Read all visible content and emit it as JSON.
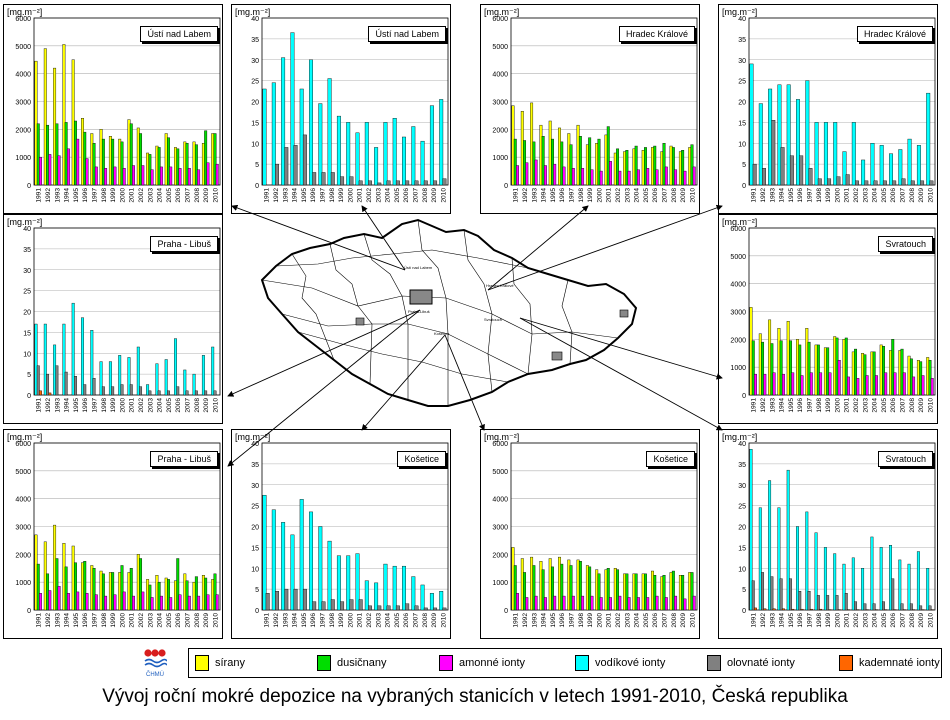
{
  "caption": "Vývoj roční mokré depozice na vybraných stanicích  v letech 1991-2010, Česká republika",
  "logo_text": "ČHMÚ",
  "map": {
    "labels": [
      "Ústí nad Labem",
      "Hradec Králové",
      "Praha-Libuš",
      "Svratouch",
      "Košetice"
    ]
  },
  "legend": [
    {
      "label": "sírany",
      "color": "#ffff00"
    },
    {
      "label": "dusičnany",
      "color": "#00dd00"
    },
    {
      "label": "amonné ionty",
      "color": "#ff00ff"
    },
    {
      "label": "vodíkové ionty",
      "color": "#00ffff"
    },
    {
      "label": "olovnaté ionty",
      "color": "#808080"
    },
    {
      "label": "kademnaté ionty",
      "color": "#ff6600"
    }
  ],
  "chart_data": [
    {
      "type": "bar",
      "unit": "[mg.m⁻²]",
      "title": "Ústí nad Labem",
      "ylim": [
        0,
        6000
      ],
      "ystep": 1000,
      "categories": [
        "1991",
        "1992",
        "1993",
        "1994",
        "1995",
        "1996",
        "1997",
        "1998",
        "1999",
        "2000",
        "2001",
        "2002",
        "2003",
        "2004",
        "2005",
        "2006",
        "2007",
        "2008",
        "2009",
        "2010"
      ],
      "series": [
        {
          "name": "sírany",
          "values": [
            4450,
            4900,
            4200,
            5050,
            4500,
            2400,
            1850,
            2000,
            1750,
            1650,
            2350,
            2050,
            1150,
            1400,
            1850,
            1350,
            1550,
            1550,
            1500,
            1850
          ]
        },
        {
          "name": "dusičnany",
          "values": [
            2200,
            2150,
            2200,
            2250,
            2300,
            1900,
            1500,
            1650,
            1650,
            1550,
            2200,
            1850,
            1100,
            1350,
            1700,
            1300,
            1500,
            1450,
            1950,
            1850
          ]
        },
        {
          "name": "amonné ionty",
          "values": [
            1000,
            1100,
            1050,
            1300,
            1650,
            950,
            650,
            600,
            650,
            600,
            700,
            700,
            550,
            650,
            650,
            600,
            600,
            550,
            800,
            750
          ]
        }
      ]
    },
    {
      "type": "bar",
      "unit": "[mg.m⁻²]",
      "title": "Ústí nad Labem",
      "ylim": [
        0,
        40
      ],
      "ystep": 5,
      "categories": [
        "1991",
        "1992",
        "1993",
        "1994",
        "1995",
        "1996",
        "1997",
        "1998",
        "1999",
        "2000",
        "2001",
        "2002",
        "2003",
        "2004",
        "2005",
        "2006",
        "2007",
        "2008",
        "2009",
        "2010"
      ],
      "series": [
        {
          "name": "vodíkové ionty",
          "values": [
            23,
            24.5,
            30.5,
            36.5,
            23,
            30,
            19.5,
            25.5,
            16.5,
            15,
            12.5,
            15,
            9,
            15,
            16,
            11.5,
            14,
            10.5,
            19,
            20.5
          ]
        },
        {
          "name": "olovnaté ionty",
          "values": [
            0,
            5,
            9,
            9.5,
            12,
            3,
            3,
            3,
            2,
            2,
            1,
            1,
            0.5,
            1,
            1,
            1,
            1,
            1,
            1,
            1.5
          ]
        }
      ]
    },
    {
      "type": "bar",
      "unit": "[mg.m⁻²]",
      "title": "Hradec Králové",
      "ylim": [
        0,
        6000
      ],
      "ystep": 1000,
      "categories": [
        "1991",
        "1992",
        "1993",
        "1994",
        "1995",
        "1996",
        "1997",
        "1998",
        "1999",
        "2000",
        "2001",
        "2002",
        "2003",
        "2004",
        "2005",
        "2006",
        "2007",
        "2008",
        "2009",
        "2010"
      ],
      "series": [
        {
          "name": "sírany",
          "values": [
            2850,
            2650,
            2950,
            2150,
            2300,
            2050,
            1850,
            2150,
            1450,
            1500,
            1800,
            1150,
            1200,
            1300,
            1250,
            1350,
            1200,
            1400,
            1200,
            1350
          ]
        },
        {
          "name": "dusičnany",
          "values": [
            1650,
            1600,
            1550,
            1750,
            1650,
            1550,
            1450,
            1750,
            1700,
            1650,
            2100,
            1300,
            1250,
            1400,
            1350,
            1400,
            1500,
            1350,
            1250,
            1450
          ]
        },
        {
          "name": "amonné ionty",
          "values": [
            700,
            800,
            900,
            700,
            750,
            650,
            600,
            600,
            550,
            500,
            850,
            500,
            500,
            550,
            600,
            550,
            650,
            550,
            500,
            650
          ]
        }
      ]
    },
    {
      "type": "bar",
      "unit": "[mg.m⁻²]",
      "title": "Hradec Králové",
      "ylim": [
        0,
        40
      ],
      "ystep": 5,
      "categories": [
        "1991",
        "1992",
        "1993",
        "1994",
        "1995",
        "1996",
        "1997",
        "1998",
        "1999",
        "2000",
        "2001",
        "2002",
        "2003",
        "2004",
        "2005",
        "2006",
        "2007",
        "2008",
        "2009",
        "2010"
      ],
      "series": [
        {
          "name": "vodíkové ionty",
          "values": [
            29,
            19.5,
            23,
            24,
            24,
            20.5,
            25,
            15,
            15,
            15,
            8,
            15,
            6,
            10,
            9.5,
            7.5,
            8.5,
            11,
            9.5,
            22
          ]
        },
        {
          "name": "olovnaté ionty",
          "values": [
            5,
            4,
            15.5,
            9,
            7,
            7,
            4,
            1.5,
            1.5,
            2,
            2.5,
            1,
            1,
            1,
            1,
            1,
            1.5,
            1,
            1,
            1
          ]
        }
      ]
    },
    {
      "type": "bar",
      "unit": "[mg.m⁻²]",
      "title": "Praha - Libuš",
      "ylim": [
        0,
        40
      ],
      "ystep": 5,
      "categories": [
        "1991",
        "1992",
        "1993",
        "1994",
        "1995",
        "1996",
        "1997",
        "1998",
        "1999",
        "2000",
        "2001",
        "2002",
        "2003",
        "2004",
        "2005",
        "2006",
        "2007",
        "2008",
        "2009",
        "2010"
      ],
      "series": [
        {
          "name": "vodíkové ionty",
          "values": [
            17,
            17,
            12,
            17,
            22,
            18.5,
            15.5,
            8,
            8,
            9.5,
            9,
            11.5,
            2.5,
            7.5,
            8.5,
            13.5,
            6,
            5,
            9.5,
            11.5
          ]
        },
        {
          "name": "olovnaté ionty",
          "values": [
            7,
            5,
            7,
            5.5,
            4.5,
            2.5,
            4,
            2,
            2,
            2.5,
            2.5,
            2,
            1,
            1,
            1,
            2,
            1,
            1,
            1,
            1
          ]
        },
        {
          "name": "kademnaté ionty",
          "values": [
            1,
            0.5,
            0,
            0,
            0,
            0,
            0,
            0,
            0,
            0,
            0,
            0,
            0,
            0,
            0,
            0,
            0,
            0,
            0,
            0
          ]
        }
      ]
    },
    {
      "type": "bar",
      "unit": "[mg.m⁻²]",
      "title": "Svratouch",
      "ylim": [
        0,
        6000
      ],
      "ystep": 1000,
      "categories": [
        "1991",
        "1992",
        "1993",
        "1994",
        "1995",
        "1996",
        "1997",
        "1998",
        "1999",
        "2000",
        "2001",
        "2002",
        "2003",
        "2004",
        "2005",
        "2006",
        "2007",
        "2008",
        "2009",
        "2010"
      ],
      "series": [
        {
          "name": "sírany",
          "values": [
            3150,
            2200,
            2700,
            2400,
            2650,
            2000,
            2400,
            1800,
            1700,
            2100,
            2000,
            1550,
            1500,
            1550,
            1800,
            1600,
            1600,
            1400,
            1250,
            1350
          ]
        },
        {
          "name": "dusičnany",
          "values": [
            1950,
            1900,
            1850,
            1950,
            1950,
            1800,
            1900,
            1800,
            1700,
            2050,
            2050,
            1650,
            1450,
            1550,
            1750,
            2000,
            1650,
            1300,
            1200,
            1250
          ]
        },
        {
          "name": "amonné ionty",
          "values": [
            750,
            750,
            800,
            750,
            800,
            700,
            800,
            800,
            800,
            1250,
            650,
            600,
            700,
            700,
            800,
            800,
            800,
            650,
            700,
            600
          ]
        }
      ]
    },
    {
      "type": "bar",
      "unit": "[mg.m⁻²]",
      "title": "Praha - Libuš",
      "ylim": [
        0,
        6000
      ],
      "ystep": 1000,
      "categories": [
        "1991",
        "1992",
        "1993",
        "1994",
        "1995",
        "1996",
        "1997",
        "1998",
        "1999",
        "2000",
        "2001",
        "2002",
        "2003",
        "2004",
        "2005",
        "2006",
        "2007",
        "2008",
        "2009",
        "2010"
      ],
      "series": [
        {
          "name": "sírany",
          "values": [
            2700,
            2450,
            3050,
            2400,
            2300,
            1700,
            1600,
            1400,
            1350,
            1350,
            1350,
            2000,
            1100,
            1250,
            1150,
            1050,
            1300,
            1000,
            1250,
            1100
          ]
        },
        {
          "name": "dusičnany",
          "values": [
            1650,
            1300,
            1850,
            1550,
            1700,
            1750,
            1500,
            1300,
            1350,
            1600,
            1500,
            1850,
            900,
            1000,
            1100,
            1850,
            1050,
            1200,
            1150,
            1300
          ]
        },
        {
          "name": "amonné ionty",
          "values": [
            600,
            700,
            850,
            600,
            650,
            600,
            550,
            500,
            550,
            650,
            500,
            650,
            450,
            500,
            450,
            550,
            500,
            500,
            550,
            550
          ]
        }
      ]
    },
    {
      "type": "bar",
      "unit": "[mg.m⁻²]",
      "title": "Košetice",
      "ylim": [
        0,
        40
      ],
      "ystep": 5,
      "categories": [
        "1991",
        "1992",
        "1993",
        "1994",
        "1995",
        "1996",
        "1997",
        "1998",
        "1999",
        "2000",
        "2001",
        "2002",
        "2003",
        "2004",
        "2005",
        "2006",
        "2007",
        "2008",
        "2009",
        "2010"
      ],
      "series": [
        {
          "name": "vodíkové ionty",
          "values": [
            27.5,
            24,
            21,
            18,
            26.5,
            23.5,
            20,
            16.5,
            13,
            13,
            13.5,
            7,
            6.5,
            11,
            10.5,
            10.5,
            8,
            6,
            4,
            4.5
          ]
        },
        {
          "name": "olovnaté ionty",
          "values": [
            4,
            4.5,
            5,
            5,
            5,
            2,
            2,
            2.5,
            2,
            2.5,
            2.5,
            1,
            1,
            1,
            1,
            1.5,
            1,
            0.5,
            0.5,
            0.5
          ]
        }
      ]
    },
    {
      "type": "bar",
      "unit": "[mg.m⁻²]",
      "title": "Košetice",
      "ylim": [
        0,
        6000
      ],
      "ystep": 1000,
      "categories": [
        "1991",
        "1992",
        "1993",
        "1994",
        "1995",
        "1996",
        "1997",
        "1998",
        "1999",
        "2000",
        "2001",
        "2002",
        "2003",
        "2004",
        "2005",
        "2006",
        "2007",
        "2008",
        "2009",
        "2010"
      ],
      "series": [
        {
          "name": "sírany",
          "values": [
            2250,
            1850,
            1900,
            1750,
            1850,
            1900,
            1800,
            1800,
            1600,
            1450,
            1450,
            1500,
            1300,
            1300,
            1300,
            1400,
            1200,
            1350,
            1250,
            1350
          ]
        },
        {
          "name": "dusičnany",
          "values": [
            1600,
            1350,
            1600,
            1450,
            1550,
            1650,
            1600,
            1750,
            1550,
            1300,
            1500,
            1450,
            1300,
            1300,
            1300,
            1250,
            1250,
            1400,
            1250,
            1350
          ]
        },
        {
          "name": "amonné ionty",
          "values": [
            600,
            450,
            500,
            450,
            500,
            500,
            500,
            500,
            500,
            450,
            450,
            500,
            450,
            450,
            450,
            500,
            450,
            500,
            400,
            500
          ]
        }
      ]
    },
    {
      "type": "bar",
      "unit": "[mg.m⁻²]",
      "title": "Svratouch",
      "ylim": [
        0,
        40
      ],
      "ystep": 5,
      "categories": [
        "1991",
        "1992",
        "1993",
        "1994",
        "1995",
        "1996",
        "1997",
        "1998",
        "1999",
        "2000",
        "2001",
        "2002",
        "2003",
        "2004",
        "2005",
        "2006",
        "2007",
        "2008",
        "2009",
        "2010"
      ],
      "series": [
        {
          "name": "vodíkové ionty",
          "values": [
            38.5,
            24.5,
            31,
            24.5,
            33.5,
            20,
            23.5,
            18.5,
            15,
            13.5,
            11,
            12.5,
            10,
            17.5,
            15,
            15.5,
            12,
            11,
            14,
            10
          ]
        },
        {
          "name": "olovnaté ionty",
          "values": [
            7,
            9,
            8,
            7.5,
            7.5,
            4.5,
            4.5,
            3.5,
            3.5,
            3.5,
            4,
            2,
            1.5,
            1.5,
            2,
            7.5,
            1.5,
            1.5,
            1,
            1
          ]
        },
        {
          "name": "kademnaté ionty",
          "values": [
            0.5,
            0.3,
            0.3,
            0.3,
            0.2,
            0.2,
            0.2,
            0.2,
            0.1,
            0.1,
            0.1,
            0.1,
            0.1,
            0.1,
            0.1,
            0.1,
            0.1,
            0.1,
            0.1,
            0.1
          ]
        }
      ]
    }
  ]
}
